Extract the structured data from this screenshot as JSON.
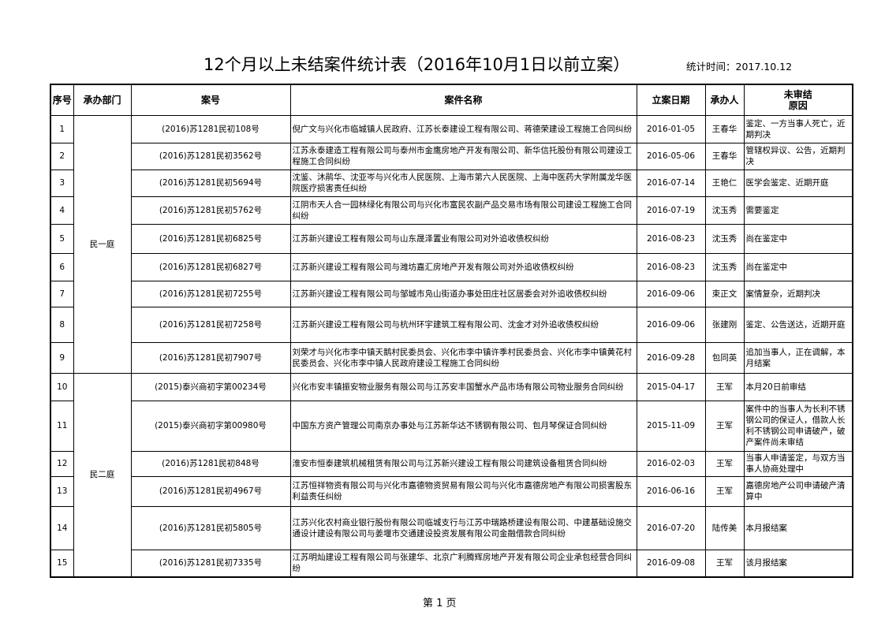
{
  "title": "12个月以上未结案件统计表（2016年10月1日以前立案）",
  "stat_time": "统计时间：2017.10.12",
  "headers": {
    "seq": "序号",
    "dept": "承办部门",
    "case_no": "案号",
    "case_name": "案件名称",
    "date": "立案日期",
    "judge": "承办人",
    "reason_1": "未审结",
    "reason_2": "原因"
  },
  "departments": [
    "民一庭",
    "民二庭"
  ],
  "rows": [
    {
      "seq": "1",
      "case_no": "(2016)苏1281民初108号",
      "case_name": "倪广文与兴化市临城镇人民政府、江苏长泰建设工程有限公司、蒋德荣建设工程施工合同纠纷",
      "date": "2016-01-05",
      "judge": "王春华",
      "reason": "鉴定、一方当事人死亡，近期判决"
    },
    {
      "seq": "2",
      "case_no": "(2016)苏1281民初3562号",
      "case_name": "江苏永泰建造工程有限公司与泰州市金鹰房地产开发有限公司、新华信托股份有限公司建设工程施工合同纠纷",
      "date": "2016-05-06",
      "judge": "王春华",
      "reason": "管辖权异议、公告，近期判决"
    },
    {
      "seq": "3",
      "case_no": "(2016)苏1281民初5694号",
      "case_name": "沈鉴、沐鹃华、沈亚岑与兴化市人民医院、上海市第六人民医院、上海中医药大学附属龙华医院医疗损害责任纠纷",
      "date": "2016-07-14",
      "judge": "王艳仁",
      "reason": "医学会鉴定、近期开庭"
    },
    {
      "seq": "4",
      "case_no": "(2016)苏1281民初5762号",
      "case_name": "江阴市天人合一园林绿化有限公司与兴化市富民农副产品交易市场有限公司建设工程施工合同纠纷",
      "date": "2016-07-19",
      "judge": "沈玉秀",
      "reason": "需要鉴定"
    },
    {
      "seq": "5",
      "case_no": "(2016)苏1281民初6825号",
      "case_name": "江苏新兴建设工程有限公司与山东晟泽置业有限公司对外追收债权纠纷",
      "date": "2016-08-23",
      "judge": "沈玉秀",
      "reason": "尚在鉴定中"
    },
    {
      "seq": "6",
      "case_no": "(2016)苏1281民初6827号",
      "case_name": "江苏新兴建设工程有限公司与潍坊嘉汇房地产开发有限公司对外追收债权纠纷",
      "date": "2016-08-23",
      "judge": "沈玉秀",
      "reason": "尚在鉴定中"
    },
    {
      "seq": "7",
      "case_no": "(2016)苏1281民初7255号",
      "case_name": "江苏新兴建设工程有限公司与邹城市凫山街道办事处田庄社区居委会对外追收债权纠纷",
      "date": "2016-09-06",
      "judge": "束正文",
      "reason": "案情复杂，近期判决"
    },
    {
      "seq": "8",
      "case_no": "(2016)苏1281民初7258号",
      "case_name": "江苏新兴建设工程有限公司与杭州环宇建筑工程有限公司、沈金才对外追收债权纠纷",
      "date": "2016-09-06",
      "judge": "张建刚",
      "reason": "鉴定、公告送达，近期开庭"
    },
    {
      "seq": "9",
      "case_no": "(2016)苏1281民初7907号",
      "case_name": "刘荣才与兴化市李中镇天鹅村民委员会、兴化市李中镇许季村民委员会、兴化市李中镇黄花村民委员会、兴化市李中镇人民政府建设工程施工合同纠纷",
      "date": "2016-09-28",
      "judge": "包同英",
      "reason": "追加当事人，正在调解，本月结案"
    },
    {
      "seq": "10",
      "case_no": "(2015)泰兴商初字第00234号",
      "case_name": "兴化市安丰镇振安物业服务有限公司与江苏安丰国蟹水产品市场有限公司物业服务合同纠纷",
      "date": "2015-04-17",
      "judge": "王军",
      "reason": "本月20日前审结"
    },
    {
      "seq": "11",
      "case_no": "(2015)泰兴商初字第00980号",
      "case_name": "中国东方资产管理公司南京办事处与江苏新华达不锈钢有限公司、包月琴保证合同纠纷",
      "date": "2015-11-09",
      "judge": "王军",
      "reason": "案件中的当事人为长利不锈钢公司的保证人，借款人长利不锈钢公司申请破产，破产案件尚未审结"
    },
    {
      "seq": "12",
      "case_no": "(2016)苏1281民初848号",
      "case_name": "淮安市恒泰建筑机械租赁有限公司与江苏新兴建设工程有限公司建筑设备租赁合同纠纷",
      "date": "2016-02-03",
      "judge": "王军",
      "reason": "当事人申请鉴定，与双方当事人协商处理中"
    },
    {
      "seq": "13",
      "case_no": "(2016)苏1281民初4967号",
      "case_name": "江苏恒祥物资有限公司与兴化市嘉德物资贸易有限公司与兴化市嘉德房地产有限公司损害股东利益责任纠纷",
      "date": "2016-06-16",
      "judge": "王军",
      "reason": "嘉德房地产公司申请破产清算中"
    },
    {
      "seq": "14",
      "case_no": "(2016)苏1281民初5805号",
      "case_name": "江苏兴化农村商业银行股份有限公司临城支行与江苏中瑞路桥建设有限公司、中建基础设施交通设计建设有限公司与姜堰市交通建设投资发展有限公司金融借款合同纠纷",
      "date": "2016-07-20",
      "judge": "陆传美",
      "reason": "本月报结案"
    },
    {
      "seq": "15",
      "case_no": "(2016)苏1281民初7335号",
      "case_name": "江苏明灿建设工程有限公司与张建华、北京广利腾辉房地产开发有限公司企业承包经营合同纠纷",
      "date": "2016-09-08",
      "judge": "王军",
      "reason": "该月报结案"
    }
  ],
  "footer": "第 1 页"
}
